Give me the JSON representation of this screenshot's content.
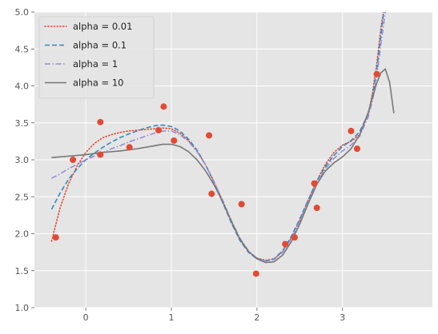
{
  "chart_data": {
    "type": "line",
    "title": "",
    "xlabel": "",
    "ylabel": "",
    "xlim": [
      -0.6,
      4.05
    ],
    "ylim": [
      1.0,
      5.0
    ],
    "x_ticks": [
      0,
      1,
      2,
      3
    ],
    "x_tick_labels": [
      "0",
      "1",
      "2",
      "3"
    ],
    "y_ticks": [
      1.0,
      1.5,
      2.0,
      2.5,
      3.0,
      3.5,
      4.0,
      4.5,
      5.0
    ],
    "y_tick_labels": [
      "1.0",
      "1.5",
      "2.0",
      "2.5",
      "3.0",
      "3.5",
      "4.0",
      "4.5",
      "5.0"
    ],
    "grid": true,
    "background": "#e5e5e5",
    "legend_position": "top-left",
    "scatter": {
      "color": "#e24a33",
      "points": [
        [
          -0.35,
          1.95
        ],
        [
          -0.15,
          3.0
        ],
        [
          0.17,
          3.07
        ],
        [
          0.17,
          3.51
        ],
        [
          0.51,
          3.17
        ],
        [
          0.85,
          3.4
        ],
        [
          0.91,
          3.72
        ],
        [
          1.03,
          3.26
        ],
        [
          1.44,
          3.33
        ],
        [
          1.47,
          2.54
        ],
        [
          1.82,
          2.4
        ],
        [
          1.99,
          1.46
        ],
        [
          2.33,
          1.86
        ],
        [
          2.44,
          1.95
        ],
        [
          2.67,
          2.68
        ],
        [
          2.7,
          2.35
        ],
        [
          3.1,
          3.39
        ],
        [
          3.17,
          3.15
        ],
        [
          3.4,
          4.16
        ]
      ]
    },
    "series": [
      {
        "name": "alpha = 0.01",
        "color": "#e24a33",
        "dash": "dotted",
        "points": [
          [
            -0.4,
            1.9
          ],
          [
            -0.3,
            2.35
          ],
          [
            -0.2,
            2.68
          ],
          [
            -0.1,
            2.92
          ],
          [
            0.0,
            3.1
          ],
          [
            0.1,
            3.22
          ],
          [
            0.2,
            3.3
          ],
          [
            0.3,
            3.34
          ],
          [
            0.4,
            3.37
          ],
          [
            0.5,
            3.39
          ],
          [
            0.6,
            3.4
          ],
          [
            0.7,
            3.41
          ],
          [
            0.8,
            3.42
          ],
          [
            0.9,
            3.43
          ],
          [
            1.0,
            3.42
          ],
          [
            1.1,
            3.36
          ],
          [
            1.2,
            3.26
          ],
          [
            1.3,
            3.12
          ],
          [
            1.4,
            2.93
          ],
          [
            1.5,
            2.7
          ],
          [
            1.6,
            2.44
          ],
          [
            1.7,
            2.16
          ],
          [
            1.8,
            1.92
          ],
          [
            1.9,
            1.76
          ],
          [
            2.0,
            1.67
          ],
          [
            2.1,
            1.64
          ],
          [
            2.2,
            1.66
          ],
          [
            2.3,
            1.76
          ],
          [
            2.4,
            1.94
          ],
          [
            2.5,
            2.18
          ],
          [
            2.6,
            2.46
          ],
          [
            2.7,
            2.72
          ],
          [
            2.8,
            2.94
          ],
          [
            2.9,
            3.1
          ],
          [
            3.0,
            3.2
          ],
          [
            3.1,
            3.25
          ],
          [
            3.2,
            3.34
          ],
          [
            3.3,
            3.62
          ],
          [
            3.35,
            3.9
          ],
          [
            3.4,
            4.3
          ],
          [
            3.45,
            4.8
          ],
          [
            3.48,
            5.0
          ]
        ]
      },
      {
        "name": "alpha = 0.1",
        "color": "#348abd",
        "dash": "dashed",
        "points": [
          [
            -0.4,
            2.33
          ],
          [
            -0.3,
            2.55
          ],
          [
            -0.2,
            2.74
          ],
          [
            -0.1,
            2.88
          ],
          [
            0.0,
            3.0
          ],
          [
            0.1,
            3.09
          ],
          [
            0.2,
            3.17
          ],
          [
            0.3,
            3.24
          ],
          [
            0.4,
            3.3
          ],
          [
            0.5,
            3.35
          ],
          [
            0.6,
            3.39
          ],
          [
            0.7,
            3.43
          ],
          [
            0.8,
            3.46
          ],
          [
            0.9,
            3.47
          ],
          [
            1.0,
            3.45
          ],
          [
            1.1,
            3.39
          ],
          [
            1.2,
            3.28
          ],
          [
            1.3,
            3.13
          ],
          [
            1.4,
            2.93
          ],
          [
            1.5,
            2.69
          ],
          [
            1.6,
            2.42
          ],
          [
            1.7,
            2.15
          ],
          [
            1.8,
            1.91
          ],
          [
            1.9,
            1.75
          ],
          [
            2.0,
            1.66
          ],
          [
            2.1,
            1.63
          ],
          [
            2.2,
            1.66
          ],
          [
            2.3,
            1.77
          ],
          [
            2.4,
            1.96
          ],
          [
            2.5,
            2.2
          ],
          [
            2.6,
            2.46
          ],
          [
            2.7,
            2.71
          ],
          [
            2.8,
            2.91
          ],
          [
            2.9,
            3.06
          ],
          [
            3.0,
            3.18
          ],
          [
            3.1,
            3.26
          ],
          [
            3.2,
            3.38
          ],
          [
            3.3,
            3.62
          ],
          [
            3.35,
            3.86
          ],
          [
            3.4,
            4.22
          ],
          [
            3.45,
            4.7
          ],
          [
            3.48,
            5.0
          ]
        ]
      },
      {
        "name": "alpha = 1",
        "color": "#988ed5",
        "dash": "dashdot",
        "points": [
          [
            -0.4,
            2.75
          ],
          [
            -0.3,
            2.81
          ],
          [
            -0.2,
            2.88
          ],
          [
            -0.1,
            2.94
          ],
          [
            0.0,
            3.0
          ],
          [
            0.1,
            3.05
          ],
          [
            0.2,
            3.1
          ],
          [
            0.3,
            3.15
          ],
          [
            0.4,
            3.19
          ],
          [
            0.5,
            3.24
          ],
          [
            0.6,
            3.28
          ],
          [
            0.7,
            3.32
          ],
          [
            0.8,
            3.36
          ],
          [
            0.9,
            3.39
          ],
          [
            1.0,
            3.39
          ],
          [
            1.1,
            3.34
          ],
          [
            1.2,
            3.25
          ],
          [
            1.3,
            3.11
          ],
          [
            1.4,
            2.93
          ],
          [
            1.5,
            2.7
          ],
          [
            1.6,
            2.45
          ],
          [
            1.7,
            2.18
          ],
          [
            1.8,
            1.94
          ],
          [
            1.9,
            1.77
          ],
          [
            2.0,
            1.67
          ],
          [
            2.1,
            1.63
          ],
          [
            2.2,
            1.65
          ],
          [
            2.3,
            1.75
          ],
          [
            2.4,
            1.93
          ],
          [
            2.5,
            2.17
          ],
          [
            2.6,
            2.43
          ],
          [
            2.7,
            2.68
          ],
          [
            2.8,
            2.88
          ],
          [
            2.9,
            3.02
          ],
          [
            3.0,
            3.12
          ],
          [
            3.1,
            3.2
          ],
          [
            3.2,
            3.32
          ],
          [
            3.3,
            3.58
          ],
          [
            3.35,
            3.8
          ],
          [
            3.4,
            4.12
          ],
          [
            3.45,
            4.58
          ],
          [
            3.5,
            5.0
          ]
        ]
      },
      {
        "name": "alpha = 10",
        "color": "#777777",
        "dash": "solid",
        "points": [
          [
            -0.4,
            3.03
          ],
          [
            -0.2,
            3.05
          ],
          [
            0.0,
            3.07
          ],
          [
            0.2,
            3.1
          ],
          [
            0.4,
            3.12
          ],
          [
            0.6,
            3.15
          ],
          [
            0.8,
            3.19
          ],
          [
            0.9,
            3.21
          ],
          [
            1.0,
            3.21
          ],
          [
            1.1,
            3.18
          ],
          [
            1.2,
            3.11
          ],
          [
            1.3,
            3.0
          ],
          [
            1.4,
            2.85
          ],
          [
            1.5,
            2.66
          ],
          [
            1.6,
            2.43
          ],
          [
            1.7,
            2.17
          ],
          [
            1.8,
            1.93
          ],
          [
            1.9,
            1.76
          ],
          [
            2.0,
            1.66
          ],
          [
            2.1,
            1.61
          ],
          [
            2.2,
            1.62
          ],
          [
            2.3,
            1.71
          ],
          [
            2.4,
            1.89
          ],
          [
            2.5,
            2.13
          ],
          [
            2.6,
            2.41
          ],
          [
            2.7,
            2.67
          ],
          [
            2.8,
            2.85
          ],
          [
            2.9,
            2.96
          ],
          [
            3.0,
            3.04
          ],
          [
            3.1,
            3.15
          ],
          [
            3.2,
            3.34
          ],
          [
            3.3,
            3.64
          ],
          [
            3.35,
            3.84
          ],
          [
            3.4,
            4.04
          ],
          [
            3.45,
            4.18
          ],
          [
            3.5,
            4.23
          ],
          [
            3.55,
            4.05
          ],
          [
            3.6,
            3.63
          ]
        ]
      }
    ]
  }
}
